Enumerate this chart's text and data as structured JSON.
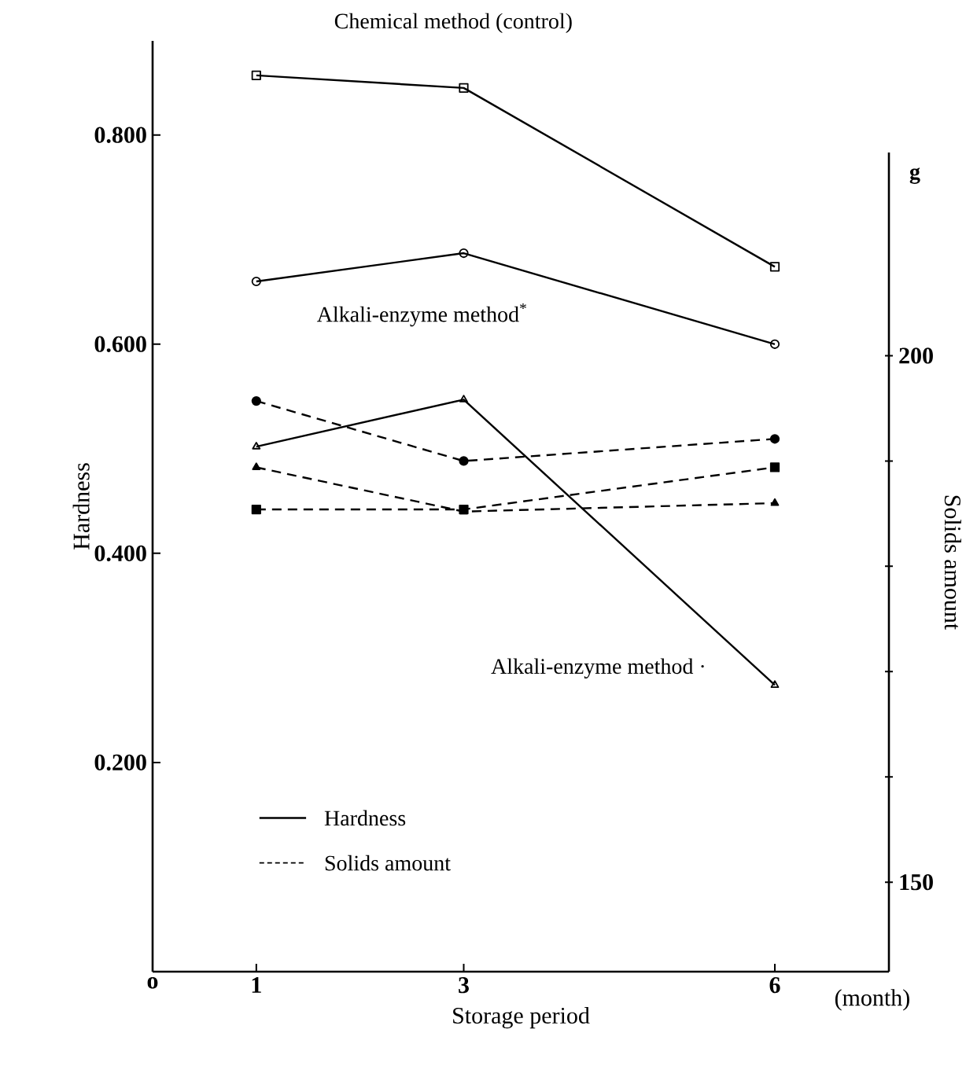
{
  "chart_data": {
    "type": "line",
    "x": [
      1,
      3,
      6
    ],
    "xlabel": "Storage period",
    "ylabel": "Hardness",
    "y2label": "Solids amount",
    "xlim": [
      0,
      7.1
    ],
    "xticks": [
      {
        "value": 0,
        "label": "o"
      },
      1,
      3,
      6
    ],
    "ylim": [
      0,
      0.89
    ],
    "yticks": [
      {
        "value": 0.2,
        "label": "0.200"
      },
      {
        "value": 0.4,
        "label": "0.400"
      },
      {
        "value": 0.6,
        "label": "0.600"
      },
      {
        "value": 0.8,
        "label": "0.800"
      }
    ],
    "y2lim": [
      141.5,
      219.3
    ],
    "y2ticks": [
      150,
      {
        "value": 160,
        "label": null
      },
      {
        "value": 170,
        "label": null
      },
      {
        "value": 180,
        "label": null
      },
      {
        "value": 190,
        "label": null
      },
      200
    ],
    "series": [
      {
        "name": "Chemical method (control)",
        "color": "#000000",
        "values": [
          0.857,
          0.845,
          0.674
        ],
        "marker": "square",
        "line_style": "solid"
      },
      {
        "name": "Alkali-enzyme method$^{*}$",
        "color": "#000000",
        "values": [
          0.66,
          0.687,
          0.6
        ],
        "marker": "circle",
        "line_style": "solid"
      },
      {
        "name": "Alkali-enzyme method ·",
        "color": "#000000",
        "values": [
          0.502,
          0.547,
          0.274
        ],
        "marker": "triangle",
        "line_style": "solid"
      },
      {
        "color": "#000000",
        "values": [
          195.7,
          190,
          192.1
        ],
        "marker": "circle",
        "line_style": "dashed",
        "axis": "y2"
      },
      {
        "color": "#000000",
        "values": [
          185.4,
          185.4,
          189.4
        ],
        "marker": "square",
        "line_style": "dashed",
        "axis": "y2"
      },
      {
        "color": "#000000",
        "values": [
          189.4,
          185.2,
          186
        ],
        "marker": "triangle",
        "line_style": "dashed",
        "axis": "y2"
      }
    ],
    "annotations": [
      "g",
      "(month)",
      "Hardness",
      "Solids amount"
    ]
  }
}
